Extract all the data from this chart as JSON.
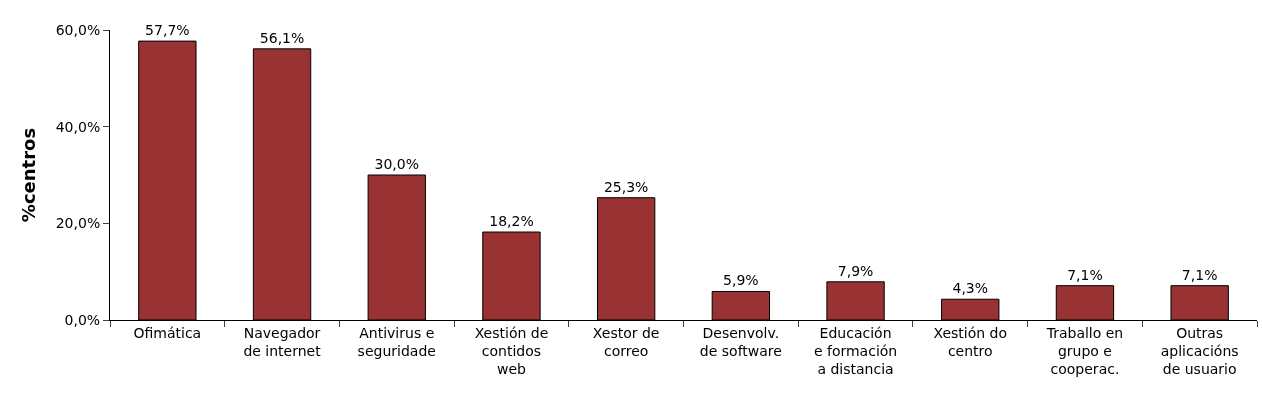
{
  "chart_data": {
    "type": "bar",
    "ylabel": "%centros",
    "categories": [
      "Ofimática",
      "Navegador\nde internet",
      "Antivirus e\nseguridade",
      "Xestión de\ncontidos\nweb",
      "Xestor de\ncorreo",
      "Desenvolv.\nde software",
      "Educación\ne formación\na distancia",
      "Xestión do\ncentro",
      "Traballo en\ngrupo e\ncooperac.",
      "Outras\naplicacións\nde usuario"
    ],
    "values": [
      57.7,
      56.1,
      30.0,
      18.2,
      25.3,
      5.9,
      7.9,
      4.3,
      7.1,
      7.1
    ],
    "value_labels": [
      "57,7%",
      "56,1%",
      "30,0%",
      "18,2%",
      "25,3%",
      "5,9%",
      "7,9%",
      "4,3%",
      "7,1%",
      "7,1%"
    ],
    "color": "#993333",
    "ylim": [
      0,
      60
    ],
    "yticks": [
      {
        "value": 0,
        "label": "0,0%"
      },
      {
        "value": 20,
        "label": "20,0%"
      },
      {
        "value": 40,
        "label": "40,0%"
      },
      {
        "value": 60,
        "label": "60,0%"
      }
    ],
    "legend": false
  }
}
